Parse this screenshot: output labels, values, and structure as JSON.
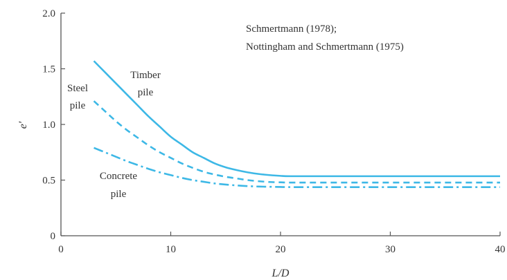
{
  "chart_data": {
    "type": "line",
    "xlabel": "L/D",
    "ylabel": "e′",
    "xlim": [
      0,
      40
    ],
    "ylim": [
      0,
      2.0
    ],
    "x_ticks": [
      0,
      10,
      20,
      30,
      40
    ],
    "x_tick_labels": [
      "0",
      "10",
      "20",
      "30",
      "40"
    ],
    "y_ticks": [
      0,
      0.5,
      1.0,
      1.5,
      2.0
    ],
    "y_tick_labels": [
      "0",
      "0.5",
      "1.0",
      "1.5",
      "2.0"
    ],
    "grid": false,
    "line_color": "#3db8e6",
    "source_lines": [
      "Schmertmann (1978);",
      "Nottingham and Schmertmann (1975)"
    ],
    "series": [
      {
        "name": "Timber pile",
        "label_lines": [
          "Timber",
          "pile"
        ],
        "style": "solid",
        "x": [
          3,
          4,
          5,
          6,
          7,
          8,
          9,
          10,
          11,
          12,
          13,
          14,
          15,
          16,
          17,
          18,
          19,
          20,
          21,
          25,
          30,
          35,
          40
        ],
        "y": [
          1.57,
          1.47,
          1.37,
          1.27,
          1.17,
          1.07,
          0.98,
          0.89,
          0.82,
          0.75,
          0.7,
          0.65,
          0.615,
          0.59,
          0.57,
          0.555,
          0.545,
          0.538,
          0.535,
          0.535,
          0.535,
          0.535,
          0.535
        ]
      },
      {
        "name": "Steel pile",
        "label_lines": [
          "Steel",
          "pile"
        ],
        "style": "dashed",
        "x": [
          3,
          4,
          5,
          6,
          7,
          8,
          9,
          10,
          11,
          12,
          13,
          14,
          15,
          16,
          17,
          18,
          19,
          20,
          21,
          25,
          30,
          35,
          40
        ],
        "y": [
          1.21,
          1.12,
          1.03,
          0.95,
          0.88,
          0.81,
          0.75,
          0.7,
          0.65,
          0.61,
          0.575,
          0.55,
          0.53,
          0.515,
          0.5,
          0.49,
          0.483,
          0.48,
          0.478,
          0.478,
          0.478,
          0.478,
          0.478
        ]
      },
      {
        "name": "Concrete pile",
        "label_lines": [
          "Concrete",
          "pile"
        ],
        "style": "dashdot",
        "x": [
          3,
          4,
          5,
          6,
          7,
          8,
          9,
          10,
          11,
          12,
          13,
          14,
          15,
          16,
          17,
          18,
          19,
          20,
          21,
          25,
          30,
          35,
          40
        ],
        "y": [
          0.79,
          0.75,
          0.71,
          0.67,
          0.635,
          0.6,
          0.57,
          0.545,
          0.52,
          0.5,
          0.485,
          0.47,
          0.46,
          0.452,
          0.446,
          0.442,
          0.44,
          0.438,
          0.437,
          0.437,
          0.437,
          0.437,
          0.437
        ]
      }
    ]
  }
}
